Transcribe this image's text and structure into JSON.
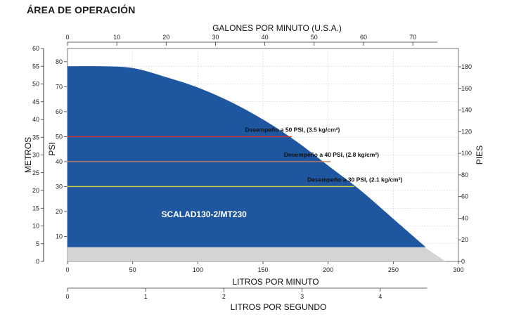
{
  "page_title": "ÁREA DE OPERACIÓN",
  "chart_data": {
    "type": "area",
    "series": [
      {
        "name": "SCALAD130-2/MT230",
        "color": "#1e56a0",
        "x_lpm": [
          0,
          25,
          50,
          75,
          100,
          125,
          150,
          175,
          200,
          225,
          250,
          275
        ],
        "y_m": [
          55,
          55,
          54.5,
          52,
          49,
          45,
          40,
          34,
          27,
          20,
          12,
          4
        ]
      }
    ],
    "shut_off_region": {
      "color": "#d4d4d4",
      "y_m": 4,
      "x_lpm_max": 290
    },
    "reference_lines": [
      {
        "label": "Desempeño a 50 PSI, (3.5 kg/cm²)",
        "psi": 50,
        "x_end_lpm": 172,
        "color": "#d1343f"
      },
      {
        "label": "Desempeño a 40 PSI, (2.8 kg/cm²)",
        "psi": 40,
        "x_end_lpm": 202,
        "color": "#c4835f"
      },
      {
        "label": "Desempeño a 30 PSI, (2.1 kg/cm²)",
        "psi": 30,
        "x_end_lpm": 220,
        "color": "#d8d43a"
      }
    ],
    "axes": {
      "bottom": {
        "label": "LITROS POR MINUTO",
        "min": 0,
        "max": 300,
        "ticks": [
          0,
          50,
          100,
          150,
          200,
          250,
          300
        ]
      },
      "bottom2": {
        "label": "LITROS POR SEGUNDO",
        "min": 0,
        "max": 5,
        "ticks": [
          0,
          1,
          2,
          3,
          4
        ]
      },
      "top": {
        "label": "GALONES POR MINUTO (U.S.A.)",
        "min": 0,
        "max": 79.25,
        "ticks": [
          0,
          10,
          20,
          30,
          40,
          50,
          60,
          70
        ]
      },
      "left_outer": {
        "label": "METROS",
        "min": 0,
        "max": 60,
        "ticks": [
          0,
          5,
          10,
          15,
          20,
          25,
          30,
          35,
          40,
          45,
          50,
          55,
          60
        ]
      },
      "left_inner": {
        "label": "PSI",
        "min": 0,
        "max": 85.3,
        "ticks": [
          10,
          20,
          30,
          40,
          50,
          60,
          70,
          80
        ]
      },
      "right": {
        "label": "PIES",
        "min": 0,
        "max": 196.9,
        "ticks": [
          0,
          20,
          40,
          60,
          80,
          100,
          120,
          140,
          160,
          180
        ]
      }
    },
    "grid": true
  }
}
